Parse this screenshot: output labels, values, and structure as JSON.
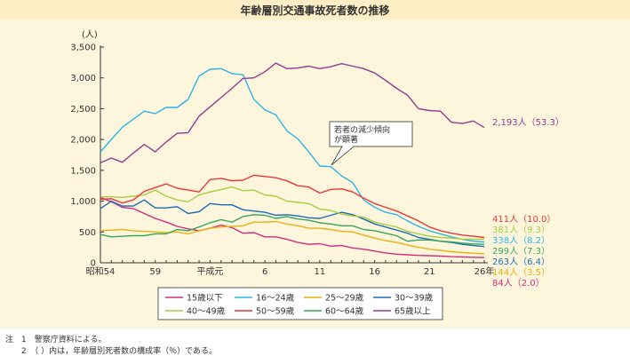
{
  "chart_data": {
    "type": "line",
    "title": "年齢層別交通事故死者数の推移",
    "ylabel": "(人)",
    "ylim": [
      0,
      3500
    ],
    "yticks": [
      0,
      500,
      1000,
      1500,
      2000,
      2500,
      3000,
      3500
    ],
    "ytick_labels": [
      "0",
      "500",
      "1,000",
      "1,500",
      "2,000",
      "2,500",
      "3,000",
      "3,500"
    ],
    "x": [
      1979,
      1980,
      1981,
      1982,
      1983,
      1984,
      1985,
      1986,
      1987,
      1988,
      1989,
      1990,
      1991,
      1992,
      1993,
      1994,
      1995,
      1996,
      1997,
      1998,
      1999,
      2000,
      2001,
      2002,
      2003,
      2004,
      2005,
      2006,
      2007,
      2008,
      2009,
      2010,
      2011,
      2012,
      2013,
      2014
    ],
    "xticks": [
      1979,
      1984,
      1989,
      1994,
      1999,
      2004,
      2009,
      2014
    ],
    "xtick_labels": [
      "昭和54",
      "59",
      "平成元",
      "6",
      "11",
      "16",
      "21",
      "26年"
    ],
    "grid": false,
    "legend_position": "bottom",
    "series": [
      {
        "name": "15歳以下",
        "color": "#d42b7e",
        "values": [
          1060,
          990,
          900,
          880,
          800,
          720,
          660,
          590,
          550,
          520,
          560,
          610,
          570,
          480,
          490,
          420,
          420,
          380,
          330,
          300,
          310,
          270,
          280,
          240,
          220,
          190,
          160,
          140,
          130,
          120,
          115,
          110,
          100,
          95,
          90,
          84
        ],
        "end_label": "84人（2.0）"
      },
      {
        "name": "16〜24歳",
        "color": "#2ab5e6",
        "values": [
          1800,
          2000,
          2200,
          2330,
          2460,
          2420,
          2520,
          2520,
          2650,
          3030,
          3140,
          3150,
          3070,
          3050,
          2650,
          2480,
          2400,
          2140,
          2010,
          1800,
          1570,
          1560,
          1410,
          1300,
          1020,
          900,
          820,
          780,
          680,
          590,
          520,
          470,
          420,
          380,
          350,
          338
        ],
        "end_label": "338人（8.2）"
      },
      {
        "name": "25〜29歳",
        "color": "#e8b010",
        "values": [
          520,
          530,
          540,
          520,
          510,
          500,
          490,
          500,
          470,
          520,
          560,
          580,
          590,
          600,
          660,
          660,
          670,
          630,
          600,
          560,
          560,
          540,
          510,
          500,
          450,
          400,
          360,
          330,
          290,
          250,
          220,
          200,
          180,
          165,
          155,
          144
        ],
        "end_label": "144人（3.5）"
      },
      {
        "name": "30〜39歳",
        "color": "#1a6db5",
        "values": [
          880,
          1000,
          920,
          920,
          1020,
          890,
          890,
          910,
          800,
          830,
          960,
          940,
          940,
          860,
          840,
          820,
          770,
          780,
          760,
          730,
          720,
          770,
          820,
          780,
          710,
          630,
          580,
          530,
          480,
          410,
          380,
          350,
          330,
          300,
          280,
          263
        ],
        "end_label": "263人（6.4）"
      },
      {
        "name": "40〜49歳",
        "color": "#a8cc40",
        "values": [
          1070,
          1070,
          1060,
          1080,
          1100,
          1180,
          1080,
          1020,
          990,
          1100,
          1150,
          1190,
          1230,
          1170,
          1180,
          1100,
          1080,
          1000,
          980,
          960,
          870,
          850,
          790,
          760,
          740,
          660,
          620,
          580,
          510,
          470,
          430,
          410,
          400,
          385,
          380,
          381
        ],
        "end_label": "381人（9.3）"
      },
      {
        "name": "50〜59歳",
        "color": "#e8373a",
        "values": [
          1030,
          1040,
          970,
          1020,
          1160,
          1220,
          1280,
          1210,
          1180,
          1150,
          1350,
          1370,
          1330,
          1340,
          1420,
          1400,
          1380,
          1330,
          1250,
          1230,
          1130,
          1190,
          1200,
          1150,
          1050,
          960,
          900,
          840,
          760,
          680,
          580,
          520,
          480,
          450,
          430,
          411
        ],
        "end_label": "411人（10.0）"
      },
      {
        "name": "60〜64歳",
        "color": "#35a55a",
        "values": [
          460,
          420,
          430,
          440,
          440,
          470,
          470,
          540,
          520,
          580,
          650,
          700,
          660,
          750,
          780,
          770,
          720,
          750,
          710,
          690,
          650,
          630,
          600,
          600,
          540,
          520,
          480,
          440,
          350,
          370,
          370,
          350,
          340,
          320,
          305,
          299
        ],
        "end_label": "299人（7.3）"
      },
      {
        "name": "65歳以上",
        "color": "#8e3d8f",
        "values": [
          1620,
          1700,
          1630,
          1780,
          1920,
          1800,
          1960,
          2100,
          2110,
          2380,
          2530,
          2680,
          2830,
          2990,
          3000,
          3100,
          3240,
          3150,
          3160,
          3190,
          3150,
          3180,
          3230,
          3190,
          3150,
          3080,
          2960,
          2830,
          2720,
          2500,
          2470,
          2460,
          2280,
          2260,
          2300,
          2193
        ],
        "end_label": "2,193人（53.3）"
      }
    ],
    "annotation": "若者の減少傾向が顕著"
  },
  "notes": [
    "注　1　警察庁資料による。",
    "　　2　（ ）内は，年齢層別死者数の構成率（％）である。"
  ]
}
